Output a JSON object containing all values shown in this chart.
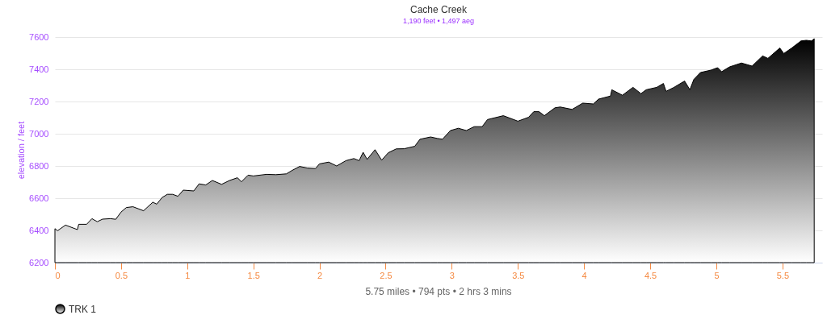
{
  "chart_data": {
    "type": "area",
    "title": "Cache Creek",
    "subtitle": "1,190 feet • 1,497 aeg",
    "ylabel": "elevation / feet",
    "annotations": [
      "5.75 miles • 794 pts • 2 hrs 3 mins"
    ],
    "x": [
      0,
      0.02,
      0.08,
      0.17,
      0.18,
      0.24,
      0.28,
      0.32,
      0.36,
      0.42,
      0.46,
      0.5,
      0.54,
      0.59,
      0.67,
      0.74,
      0.77,
      0.81,
      0.85,
      0.89,
      0.93,
      0.97,
      1.05,
      1.09,
      1.14,
      1.19,
      1.26,
      1.32,
      1.38,
      1.41,
      1.46,
      1.5,
      1.6,
      1.67,
      1.75,
      1.79,
      1.85,
      1.91,
      1.97,
      2.0,
      2.07,
      2.13,
      2.2,
      2.26,
      2.3,
      2.33,
      2.36,
      2.42,
      2.47,
      2.52,
      2.58,
      2.64,
      2.72,
      2.76,
      2.84,
      2.89,
      2.93,
      2.99,
      3.05,
      3.11,
      3.17,
      3.23,
      3.27,
      3.39,
      3.5,
      3.58,
      3.62,
      3.66,
      3.7,
      3.78,
      3.82,
      3.91,
      3.99,
      4.07,
      4.11,
      4.2,
      4.21,
      4.29,
      4.37,
      4.43,
      4.47,
      4.55,
      4.6,
      4.62,
      4.68,
      4.76,
      4.8,
      4.83,
      4.88,
      4.96,
      5.01,
      5.04,
      5.1,
      5.19,
      5.27,
      5.35,
      5.39,
      5.48,
      5.51,
      5.57,
      5.64,
      5.68,
      5.72,
      5.74
    ],
    "series": [
      {
        "name": "TRK 1",
        "color": "#000000",
        "values": [
          6411,
          6398,
          6433,
          6405,
          6438,
          6438,
          6473,
          6454,
          6470,
          6473,
          6469,
          6514,
          6542,
          6547,
          6522,
          6575,
          6563,
          6604,
          6624,
          6624,
          6612,
          6650,
          6645,
          6689,
          6682,
          6710,
          6686,
          6710,
          6727,
          6702,
          6743,
          6738,
          6748,
          6746,
          6751,
          6771,
          6797,
          6787,
          6784,
          6813,
          6824,
          6800,
          6833,
          6846,
          6833,
          6885,
          6841,
          6901,
          6836,
          6882,
          6906,
          6907,
          6922,
          6966,
          6980,
          6971,
          6966,
          7020,
          7034,
          7020,
          7044,
          7044,
          7088,
          7112,
          7078,
          7102,
          7137,
          7137,
          7112,
          7161,
          7166,
          7151,
          7190,
          7185,
          7215,
          7234,
          7273,
          7239,
          7288,
          7249,
          7273,
          7288,
          7312,
          7263,
          7288,
          7327,
          7273,
          7337,
          7380,
          7395,
          7410,
          7385,
          7415,
          7439,
          7420,
          7483,
          7468,
          7532,
          7498,
          7532,
          7576,
          7580,
          7576,
          7590
        ]
      }
    ],
    "xlim": [
      0,
      5.8
    ],
    "ylim": [
      6200,
      7600
    ],
    "xticks": [
      0,
      0.5,
      1,
      1.5,
      2,
      2.5,
      3,
      3.5,
      4,
      4.5,
      5,
      5.5
    ],
    "yticks": [
      6200,
      6400,
      6600,
      6800,
      7000,
      7200,
      7400,
      7600
    ],
    "grid": "y",
    "legend": "bottom"
  }
}
